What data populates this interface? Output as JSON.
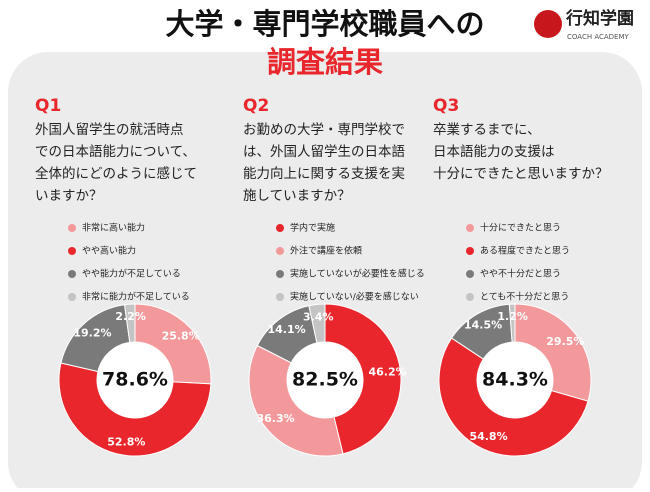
{
  "header": {
    "title_line1": "大学・専門学校職員への",
    "title_line2": "調査結果",
    "logo_name": "行知学園",
    "logo_sub": "COACH ACADEMY"
  },
  "chart_data": [
    {
      "type": "pie",
      "title": "Q1",
      "question": [
        "外国人留学生の就活時点",
        "での日本語能力について、",
        "全体的にどのように感じて",
        "いますか？"
      ],
      "categories": [
        "非常に高い能力",
        "やや高い能力",
        "やや能力が不足している",
        "非常に能力が不足している"
      ],
      "values": [
        25.8,
        52.8,
        19.2,
        2.2
      ],
      "value_labels": [
        "25.8%",
        "52.8%",
        "19.2%",
        "2.2%"
      ],
      "colors": [
        "#f4999b",
        "#e8262c",
        "#7a7a7a",
        "#c4c4c4"
      ],
      "center_label": "78.6%"
    },
    {
      "type": "pie",
      "title": "Q2",
      "question": [
        "お勤めの大学・専門学校で",
        "は、外国人留学生の日本語",
        "能力向上に関する支援を実",
        "施していますか？"
      ],
      "categories": [
        "学内で実施",
        "外注で講座を依頼",
        "実施していないが必要性を感じる",
        "実施していない/必要を感じない"
      ],
      "values": [
        46.2,
        36.3,
        14.1,
        3.4
      ],
      "value_labels": [
        "46.2%",
        "36.3%",
        "14.1%",
        "3.4%"
      ],
      "colors": [
        "#e8262c",
        "#f4999b",
        "#7a7a7a",
        "#c4c4c4"
      ],
      "center_label": "82.5%"
    },
    {
      "type": "pie",
      "title": "Q3",
      "question": [
        "卒業するまでに、",
        "日本語能力の支援は",
        "十分にできたと思いますか？"
      ],
      "categories": [
        "十分にできたと思う",
        "ある程度できたと思う",
        "やや不十分だと思う",
        "とても不十分だと思う"
      ],
      "values": [
        29.5,
        54.8,
        14.5,
        1.2
      ],
      "value_labels": [
        "29.5%",
        "54.8%",
        "14.5%",
        "1.2%"
      ],
      "colors": [
        "#f4999b",
        "#e8262c",
        "#7a7a7a",
        "#c4c4c4"
      ],
      "center_label": "84.3%"
    }
  ]
}
